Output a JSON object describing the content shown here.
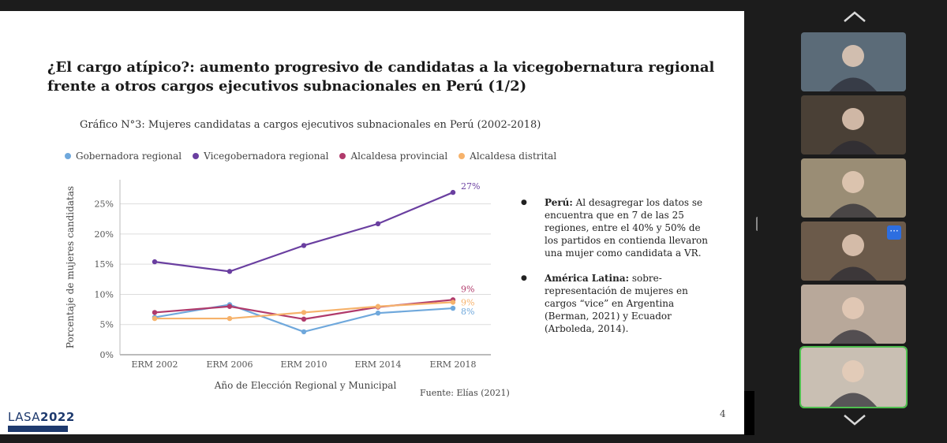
{
  "slide": {
    "title": "¿El cargo atípico?: aumento progresivo de candidatas a la vicegobernatura regional frente a otros cargos ejecutivos subnacionales en Perú (1/2)",
    "chart_caption": "Gráfico N°3: Mujeres candidatas a cargos ejecutivos subnacionales en Perú  (2002-2018)",
    "source": "Fuente: Elías (2021)",
    "page_number": "4",
    "bullets": [
      {
        "bold": "Perú:",
        "text": " Al desagregar los datos se encuentra que en 7 de las 25 regiones, entre el 40% y 50% de los partidos en contienda llevaron una mujer como candidata a VR."
      },
      {
        "bold": "América Latina:",
        "text": " sobre-representación de mujeres en cargos “vice”  en Argentina (Berman, 2021) y Ecuador (Arboleda, 2014)."
      }
    ]
  },
  "logo": {
    "name": "LASA",
    "year": "2022"
  },
  "chart_data": {
    "type": "line",
    "title": "",
    "xlabel": "Año de Elección Regional y Municipal",
    "ylabel": "Porcentaje de mujeres candidatas",
    "categories": [
      "ERM 2002",
      "ERM 2006",
      "ERM 2010",
      "ERM 2014",
      "ERM 2018"
    ],
    "ylim": [
      0,
      0.29
    ],
    "yticks": [
      {
        "v": 0,
        "label": "0%"
      },
      {
        "v": 0.05,
        "label": "5%"
      },
      {
        "v": 0.1,
        "label": "10%"
      },
      {
        "v": 0.15,
        "label": "15%"
      },
      {
        "v": 0.2,
        "label": "20%"
      },
      {
        "v": 0.25,
        "label": "25%"
      }
    ],
    "grid": true,
    "legend_position": "top",
    "series": [
      {
        "name": "Gobernadora regional",
        "color": "#6fa8dc",
        "values": [
          0.062,
          0.083,
          0.038,
          0.069,
          0.077
        ],
        "end_label": "8%"
      },
      {
        "name": "Vicegobernadora regional",
        "color": "#6a3fa0",
        "values": [
          0.154,
          0.138,
          0.181,
          0.217,
          0.269
        ],
        "end_label": "27%"
      },
      {
        "name": "Alcaldesa provincial",
        "color": "#b03a6b",
        "values": [
          0.07,
          0.08,
          0.059,
          0.079,
          0.091
        ],
        "end_label": "9%"
      },
      {
        "name": "Alcaldesa distrital",
        "color": "#f6b26b",
        "values": [
          0.06,
          0.06,
          0.07,
          0.08,
          0.087
        ],
        "end_label": "9%"
      }
    ]
  },
  "participants": [
    {
      "name": "participant-1",
      "bg": "#5b6b78"
    },
    {
      "name": "participant-2",
      "bg": "#4a4036"
    },
    {
      "name": "participant-3",
      "bg": "#9a8d75"
    },
    {
      "name": "participant-4",
      "bg": "#6b5a4a"
    },
    {
      "name": "participant-5",
      "bg": "#b8a89a"
    },
    {
      "name": "participant-6",
      "bg": "#c9bfb3"
    }
  ],
  "icons": {
    "up": "chevron-up-icon",
    "down": "chevron-down-icon",
    "more": "more-icon"
  }
}
